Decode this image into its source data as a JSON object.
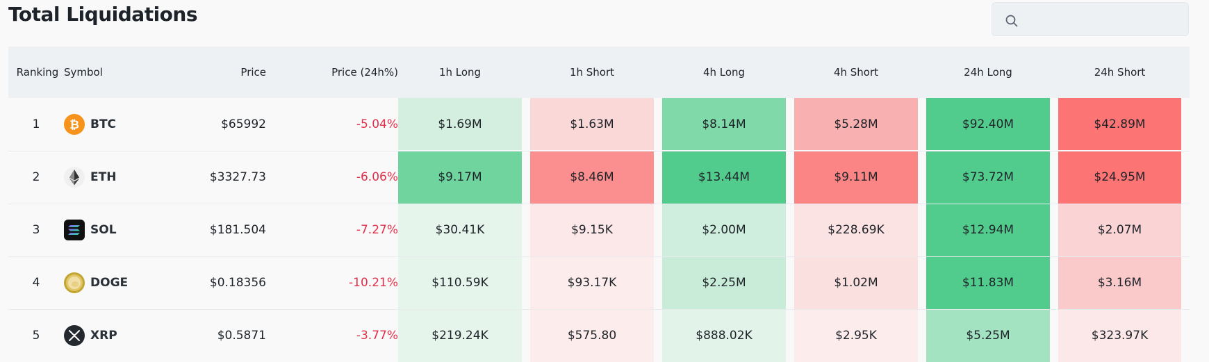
{
  "page": {
    "title": "Total Liquidations"
  },
  "search": {
    "placeholder": "",
    "value": ""
  },
  "table": {
    "headers": {
      "ranking": "Ranking",
      "symbol": "Symbol",
      "price": "Price",
      "price_change": "Price (24h%)",
      "h1_long": "1h Long",
      "h1_short": "1h Short",
      "h4_long": "4h Long",
      "h4_short": "4h Short",
      "h24_long": "24h Long",
      "h24_short": "24h Short"
    },
    "rows": [
      {
        "rank": "1",
        "symbol": "BTC",
        "icon": "bitcoin-icon",
        "price": "$65992",
        "change": "-5.04%",
        "h1_long": "$1.69M",
        "h1_short": "$1.63M",
        "h4_long": "$8.14M",
        "h4_short": "$5.28M",
        "h24_long": "$92.40M",
        "h24_short": "$42.89M"
      },
      {
        "rank": "2",
        "symbol": "ETH",
        "icon": "ethereum-icon",
        "price": "$3327.73",
        "change": "-6.06%",
        "h1_long": "$9.17M",
        "h1_short": "$8.46M",
        "h4_long": "$13.44M",
        "h4_short": "$9.11M",
        "h24_long": "$73.72M",
        "h24_short": "$24.95M"
      },
      {
        "rank": "3",
        "symbol": "SOL",
        "icon": "solana-icon",
        "price": "$181.504",
        "change": "-7.27%",
        "h1_long": "$30.41K",
        "h1_short": "$9.15K",
        "h4_long": "$2.00M",
        "h4_short": "$228.69K",
        "h24_long": "$12.94M",
        "h24_short": "$2.07M"
      },
      {
        "rank": "4",
        "symbol": "DOGE",
        "icon": "dogecoin-icon",
        "price": "$0.18356",
        "change": "-10.21%",
        "h1_long": "$110.59K",
        "h1_short": "$93.17K",
        "h4_long": "$2.25M",
        "h4_short": "$1.02M",
        "h24_long": "$11.83M",
        "h24_short": "$3.16M"
      },
      {
        "rank": "5",
        "symbol": "XRP",
        "icon": "xrp-icon",
        "price": "$0.5871",
        "change": "-3.77%",
        "h1_long": "$219.24K",
        "h1_short": "$575.80",
        "h4_long": "$888.02K",
        "h4_short": "$2.95K",
        "h24_long": "$5.25M",
        "h24_short": "$323.97K"
      }
    ],
    "cell_colors": [
      [
        "#d4efe0",
        "#fad8d8",
        "#7fd9a8",
        "#f9b0b0",
        "#52cc8c",
        "#fd7475"
      ],
      [
        "#6fd49e",
        "#fb8e8e",
        "#52cc8c",
        "#fb8585",
        "#52cc8c",
        "#fd7475"
      ],
      [
        "#e6f5ec",
        "#fce8e8",
        "#cfeedd",
        "#fbe3e3",
        "#52cc8c",
        "#fad4d4"
      ],
      [
        "#e6f5ec",
        "#fcecec",
        "#c8ecd8",
        "#fbe0e0",
        "#52cc8c",
        "#fac9c9"
      ],
      [
        "#e6f5ec",
        "#fcecec",
        "#e2f4e9",
        "#fcecec",
        "#a3e3c2",
        "#fce8e8"
      ]
    ],
    "change_color": "#e0304a"
  }
}
